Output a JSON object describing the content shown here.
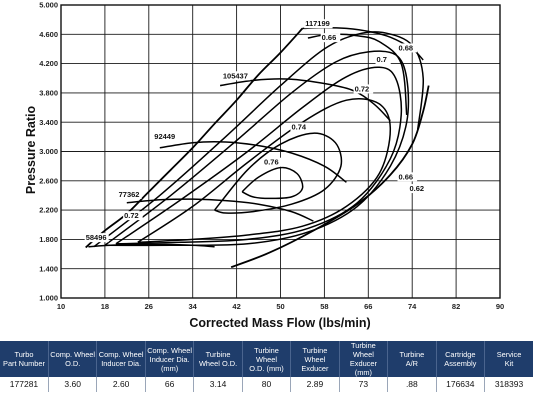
{
  "chart_data": {
    "type": "line",
    "title": "",
    "xlabel": "Corrected Mass Flow (lbs/min)",
    "ylabel": "Pressure Ratio",
    "xlim": [
      10,
      90
    ],
    "ylim": [
      1.0,
      5.0
    ],
    "x_ticks": [
      "10",
      "18",
      "26",
      "34",
      "42",
      "50",
      "58",
      "66",
      "74",
      "82",
      "90"
    ],
    "y_ticks": [
      "1.000",
      "1.400",
      "1.800",
      "2.200",
      "2.600",
      "3.000",
      "3.400",
      "3.800",
      "4.200",
      "4.600",
      "5.000"
    ],
    "grid": true,
    "speed_lines": [
      {
        "name": "58496",
        "label_at": [
          14.5,
          1.79
        ],
        "x": [
          15,
          19,
          24,
          29,
          34,
          38
        ],
        "y": [
          1.7,
          1.72,
          1.73,
          1.73,
          1.72,
          1.7
        ]
      },
      {
        "name": "77362",
        "label_at": [
          20.5,
          2.38
        ],
        "x": [
          22,
          28,
          34,
          40,
          46,
          52,
          56
        ],
        "y": [
          2.3,
          2.34,
          2.35,
          2.33,
          2.28,
          2.18,
          2.05
        ]
      },
      {
        "name": "92449",
        "label_at": [
          27,
          3.17
        ],
        "x": [
          28,
          34,
          40,
          46,
          52,
          58,
          62
        ],
        "y": [
          3.05,
          3.12,
          3.13,
          3.08,
          2.98,
          2.8,
          2.58
        ]
      },
      {
        "name": "105437",
        "label_at": [
          39.5,
          4.0
        ],
        "x": [
          39,
          45,
          51,
          57,
          63,
          67,
          70
        ],
        "y": [
          3.9,
          3.97,
          3.99,
          3.94,
          3.84,
          3.65,
          3.42
        ]
      },
      {
        "name": "117199",
        "label_at": [
          54.5,
          4.71
        ],
        "x": [
          54,
          58,
          62,
          66,
          70,
          74,
          76
        ],
        "y": [
          4.68,
          4.69,
          4.68,
          4.64,
          4.56,
          4.4,
          4.25
        ]
      }
    ],
    "surge_line": {
      "x": [
        14.5,
        18,
        22,
        26,
        30,
        34,
        38,
        42,
        46,
        50,
        54
      ],
      "y": [
        1.69,
        1.92,
        2.15,
        2.45,
        2.75,
        3.05,
        3.38,
        3.7,
        4.05,
        4.35,
        4.68
      ]
    },
    "choke_line": {
      "x": [
        41,
        48,
        56,
        64,
        70,
        74,
        76,
        77
      ],
      "y": [
        1.42,
        1.62,
        1.92,
        2.28,
        2.68,
        3.1,
        3.55,
        3.9
      ]
    },
    "efficiency_islands": [
      {
        "label": "0.76",
        "label_at": [
          47,
          2.82
        ],
        "x": [
          43,
          46,
          50,
          53,
          54,
          52,
          48,
          45,
          43
        ],
        "y": [
          2.45,
          2.65,
          2.78,
          2.7,
          2.5,
          2.38,
          2.36,
          2.38,
          2.45
        ]
      },
      {
        "label": "0.74",
        "label_at": [
          52,
          3.3
        ],
        "x": [
          38,
          44,
          50,
          56,
          60,
          61,
          58,
          52,
          45,
          40,
          38
        ],
        "y": [
          2.2,
          2.75,
          3.1,
          3.25,
          3.12,
          2.8,
          2.48,
          2.28,
          2.18,
          2.16,
          2.2
        ]
      },
      {
        "label": "0.72",
        "label_at": [
          63.5,
          3.82
        ],
        "x": [
          24,
          34,
          44,
          54,
          62,
          68,
          70,
          68,
          62,
          54,
          44,
          34,
          24
        ],
        "y": [
          1.76,
          2.25,
          2.85,
          3.4,
          3.7,
          3.65,
          3.3,
          2.7,
          2.25,
          1.98,
          1.86,
          1.8,
          1.76
        ]
      },
      {
        "label": "0.7",
        "label_at": [
          67.5,
          4.22
        ],
        "x": [
          20,
          32,
          44,
          54,
          62,
          68,
          71,
          72,
          70,
          64,
          55,
          44,
          32,
          20
        ],
        "y": [
          1.74,
          2.35,
          3.0,
          3.6,
          4.02,
          4.15,
          4.0,
          3.5,
          2.9,
          2.3,
          1.95,
          1.8,
          1.76,
          1.74
        ]
      },
      {
        "label": "0.68",
        "label_at": [
          71.5,
          4.38
        ],
        "x": [
          18,
          30,
          42,
          52,
          60,
          66,
          71,
          73,
          73,
          70,
          64,
          55,
          44,
          30,
          18
        ],
        "y": [
          1.72,
          2.4,
          3.15,
          3.8,
          4.22,
          4.36,
          4.32,
          4.0,
          3.4,
          2.8,
          2.25,
          1.9,
          1.74,
          1.72,
          1.72
        ]
      },
      {
        "label": "0.66",
        "label_at": [
          71.5,
          2.62
        ],
        "x": [
          55,
          59,
          64,
          68,
          72,
          73
        ],
        "y": [
          4.55,
          4.6,
          4.58,
          4.5,
          4.2,
          3.5
        ]
      },
      {
        "label": "0.62",
        "label_at": [
          73.5,
          2.46
        ],
        "x": [
          16,
          28,
          40,
          50,
          58,
          64,
          69,
          74,
          76,
          75
        ],
        "y": [
          1.7,
          2.4,
          3.2,
          3.9,
          4.4,
          4.6,
          4.62,
          4.45,
          4.0,
          3.3
        ]
      }
    ],
    "eff_label_066_top": {
      "label": "0.66",
      "label_at": [
        57.5,
        4.52
      ]
    },
    "eff_label_072_low": {
      "label": "0.72",
      "label_at": [
        21.5,
        2.09
      ]
    }
  },
  "table": {
    "headers": [
      [
        "Turbo",
        "Part Number"
      ],
      [
        "Comp. Wheel",
        "O.D."
      ],
      [
        "Comp. Wheel",
        "Inducer Dia."
      ],
      [
        "Comp. Wheel",
        "Inducer Dia. (mm)"
      ],
      [
        "Turbine",
        "Wheel O.D."
      ],
      [
        "Turbine Wheel",
        "O.D. (mm)"
      ],
      [
        "Turbine Wheel",
        "Exducer"
      ],
      [
        "Turbine Wheel",
        "Exducer (mm)"
      ],
      [
        "Turbine",
        "A/R"
      ],
      [
        "Cartridge",
        "Assembly"
      ],
      [
        "Service",
        "Kit"
      ]
    ],
    "row": [
      "177281",
      "3.60",
      "2.60",
      "66",
      "3.14",
      "80",
      "2.89",
      "73",
      ".88",
      "176634",
      "318393"
    ]
  }
}
